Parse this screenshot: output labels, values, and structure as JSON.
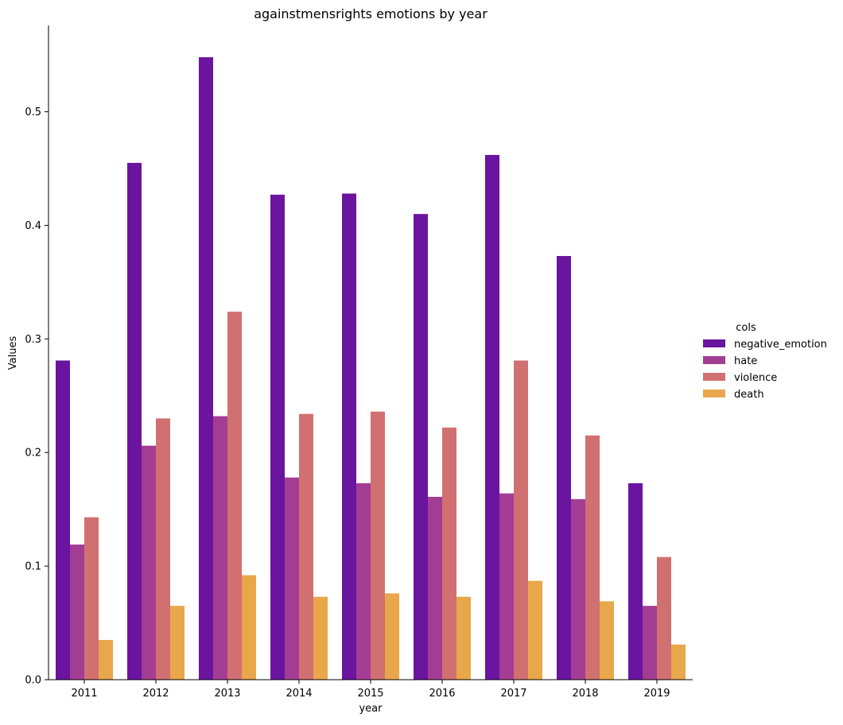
{
  "chart_data": {
    "type": "bar",
    "title": "againstmensrights emotions by year",
    "xlabel": "year",
    "ylabel": "Values",
    "categories": [
      "2011",
      "2012",
      "2013",
      "2014",
      "2015",
      "2016",
      "2017",
      "2018",
      "2019"
    ],
    "ylim": [
      0,
      0.576
    ],
    "yticks": [
      "0.0",
      "0.1",
      "0.2",
      "0.3",
      "0.4",
      "0.5"
    ],
    "grid": false,
    "legend": {
      "title": "cols",
      "placement": "right"
    },
    "series": [
      {
        "name": "negative_emotion",
        "color": "#6a14a0",
        "values": [
          0.281,
          0.455,
          0.548,
          0.427,
          0.428,
          0.41,
          0.462,
          0.373,
          0.173
        ]
      },
      {
        "name": "hate",
        "color": "#a33d94",
        "values": [
          0.119,
          0.206,
          0.232,
          0.178,
          0.173,
          0.161,
          0.164,
          0.159,
          0.065
        ]
      },
      {
        "name": "violence",
        "color": "#d17070",
        "values": [
          0.143,
          0.23,
          0.324,
          0.234,
          0.236,
          0.222,
          0.281,
          0.215,
          0.108
        ]
      },
      {
        "name": "death",
        "color": "#e9a74b",
        "values": [
          0.035,
          0.065,
          0.092,
          0.073,
          0.076,
          0.073,
          0.087,
          0.069,
          0.031
        ]
      }
    ]
  }
}
